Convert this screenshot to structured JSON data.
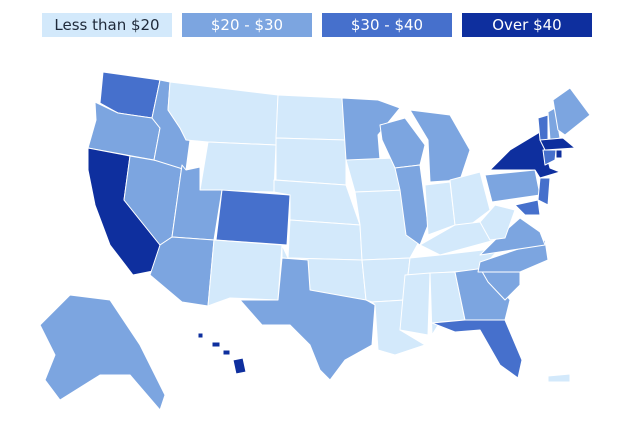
{
  "legend": [
    {
      "label": "Less than $20",
      "color": "#d3e9fb",
      "text_color": "#1f2a3a"
    },
    {
      "label": "$20 - $30",
      "color": "#7ca5e0",
      "text_color": "#ffffff"
    },
    {
      "label": "$30 - $40",
      "color": "#4670cc",
      "text_color": "#ffffff"
    },
    {
      "label": "Over $40",
      "color": "#0e2f9e",
      "text_color": "#ffffff"
    }
  ]
}
